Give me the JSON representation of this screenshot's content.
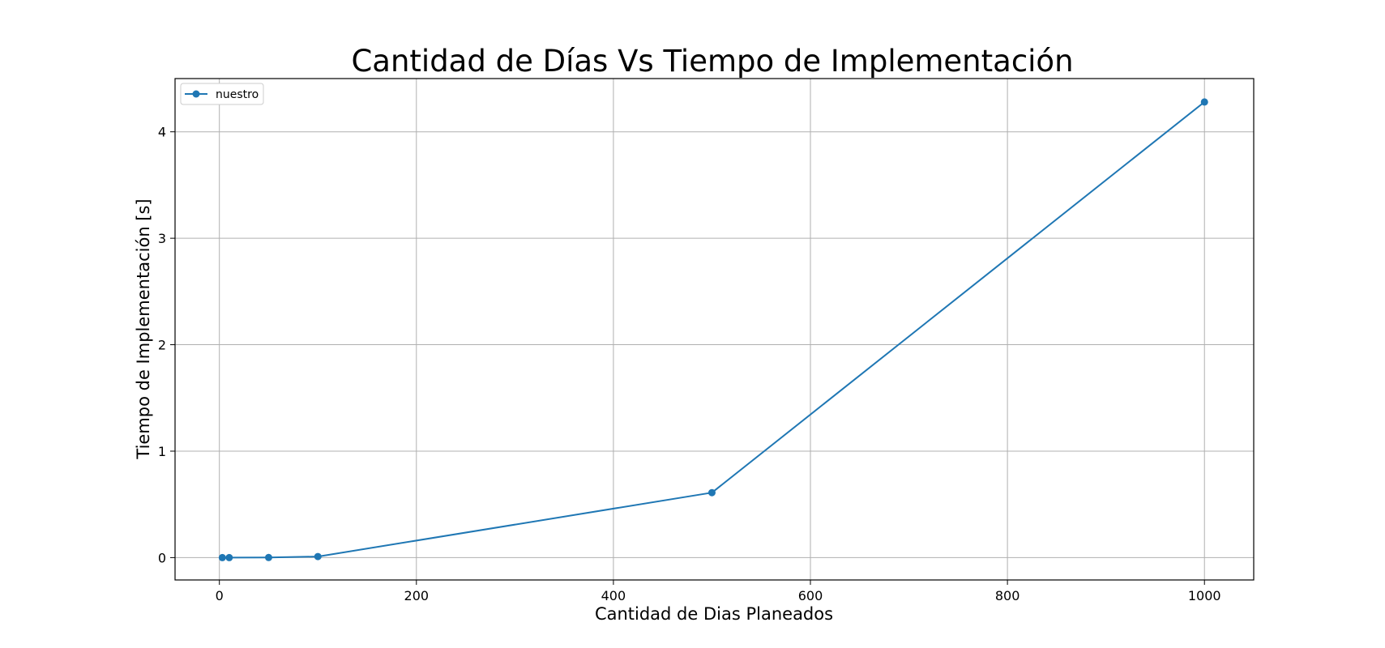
{
  "chart_data": {
    "type": "line",
    "title": "Cantidad de Días Vs Tiempo de Implementación",
    "xlabel": "Cantidad de Dias Planeados",
    "ylabel": "Tiempo de Implementación [s]",
    "xlim": [
      -45,
      1050
    ],
    "ylim": [
      -0.21,
      4.5
    ],
    "xticks": [
      0,
      200,
      400,
      600,
      800,
      1000
    ],
    "yticks": [
      0,
      1,
      2,
      3,
      4
    ],
    "grid": true,
    "legend_position": "top-left",
    "series": [
      {
        "name": "nuestro",
        "color": "#1f77b4",
        "marker": "circle",
        "x": [
          3,
          10,
          50,
          100,
          500,
          1000
        ],
        "y": [
          0.0,
          0.0,
          0.001,
          0.01,
          0.61,
          4.28
        ]
      }
    ]
  }
}
